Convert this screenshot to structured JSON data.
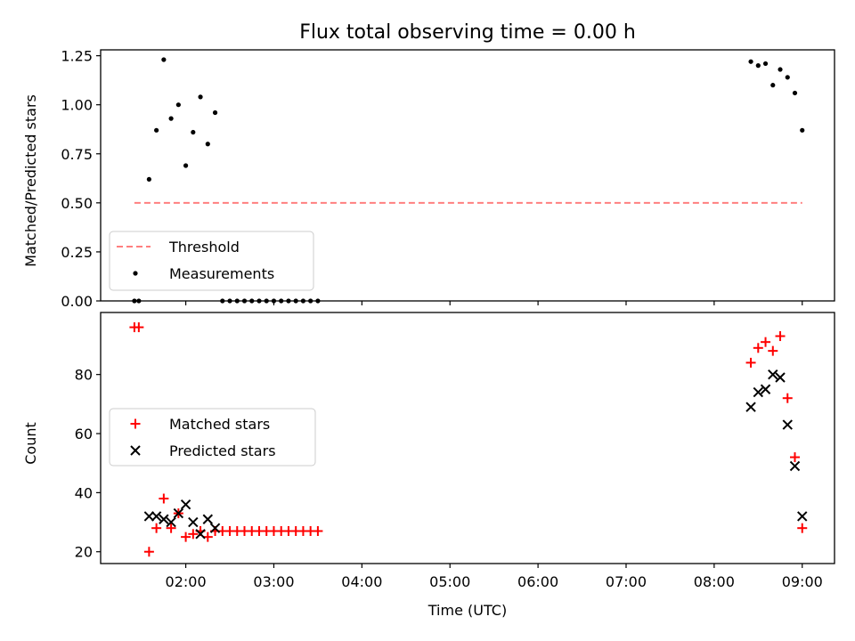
{
  "figure": {
    "title": "Flux total observing time = 0.00 h"
  },
  "chart_data": [
    {
      "type": "scatter",
      "ylabel": "Matched/Predicted stars",
      "xlabel": "",
      "xlim": [
        "01:02",
        "09:22"
      ],
      "ylim": [
        0,
        1.28
      ],
      "yticks": [
        0,
        0.25,
        0.5,
        0.75,
        1.0,
        1.25
      ],
      "ytick_labels": [
        "0.00",
        "0.25",
        "0.50",
        "0.75",
        "1.00",
        "1.25"
      ],
      "xticks": [
        "02:00",
        "03:00",
        "04:00",
        "05:00",
        "06:00",
        "07:00",
        "08:00",
        "09:00"
      ],
      "show_xtick_labels": false,
      "grid": false,
      "legend": "lower-left",
      "series": [
        {
          "name": "Threshold",
          "kind": "line",
          "style": "dashed",
          "color": "#ff7f7f",
          "x": [
            "01:25",
            "09:00"
          ],
          "y": [
            0.5,
            0.5
          ]
        },
        {
          "name": "Measurements",
          "kind": "scatter",
          "marker": "dot",
          "color": "#000000",
          "x": [
            "01:25",
            "01:28",
            "01:35",
            "01:40",
            "01:45",
            "01:50",
            "01:55",
            "02:00",
            "02:05",
            "02:10",
            "02:15",
            "02:20",
            "02:25",
            "02:30",
            "02:35",
            "02:40",
            "02:45",
            "02:50",
            "02:55",
            "03:00",
            "03:05",
            "03:10",
            "03:15",
            "03:20",
            "03:25",
            "03:30",
            "08:25",
            "08:30",
            "08:35",
            "08:40",
            "08:45",
            "08:50",
            "08:55",
            "09:00"
          ],
          "y": [
            0,
            0,
            0.62,
            0.87,
            1.23,
            0.93,
            1.0,
            0.69,
            0.86,
            1.04,
            0.8,
            0.96,
            0,
            0,
            0,
            0,
            0,
            0,
            0,
            0,
            0,
            0,
            0,
            0,
            0,
            0,
            1.22,
            1.2,
            1.21,
            1.1,
            1.18,
            1.14,
            1.06,
            0.87
          ]
        }
      ]
    },
    {
      "type": "scatter",
      "ylabel": "Count",
      "xlabel": "Time (UTC)",
      "xlim": [
        "01:02",
        "09:22"
      ],
      "ylim": [
        16,
        101
      ],
      "yticks": [
        20,
        40,
        60,
        80
      ],
      "ytick_labels": [
        "20",
        "40",
        "60",
        "80"
      ],
      "xticks": [
        "02:00",
        "03:00",
        "04:00",
        "05:00",
        "06:00",
        "07:00",
        "08:00",
        "09:00"
      ],
      "show_xtick_labels": true,
      "grid": false,
      "legend": "center-left",
      "series": [
        {
          "name": "Matched stars",
          "kind": "scatter",
          "marker": "plus",
          "color": "#ff0000",
          "x": [
            "01:25",
            "01:28",
            "01:35",
            "01:40",
            "01:45",
            "01:50",
            "01:55",
            "02:00",
            "02:05",
            "02:10",
            "02:15",
            "02:20",
            "02:25",
            "02:30",
            "02:35",
            "02:40",
            "02:45",
            "02:50",
            "02:55",
            "03:00",
            "03:05",
            "03:10",
            "03:15",
            "03:20",
            "03:25",
            "03:30",
            "08:25",
            "08:30",
            "08:35",
            "08:40",
            "08:45",
            "08:50",
            "08:55",
            "09:00"
          ],
          "y": [
            96,
            96,
            20,
            28,
            38,
            28,
            33,
            25,
            26,
            27,
            25,
            27,
            27,
            27,
            27,
            27,
            27,
            27,
            27,
            27,
            27,
            27,
            27,
            27,
            27,
            27,
            84,
            89,
            91,
            88,
            93,
            72,
            52,
            28
          ]
        },
        {
          "name": "Predicted stars",
          "kind": "scatter",
          "marker": "x",
          "color": "#000000",
          "x": [
            "01:35",
            "01:40",
            "01:45",
            "01:50",
            "01:55",
            "02:00",
            "02:05",
            "02:10",
            "02:15",
            "02:20",
            "08:25",
            "08:30",
            "08:35",
            "08:40",
            "08:45",
            "08:50",
            "08:55",
            "09:00"
          ],
          "y": [
            32,
            32,
            31,
            30,
            33,
            36,
            30,
            26,
            31,
            28,
            69,
            74,
            75,
            80,
            79,
            63,
            49,
            32
          ]
        }
      ]
    }
  ]
}
